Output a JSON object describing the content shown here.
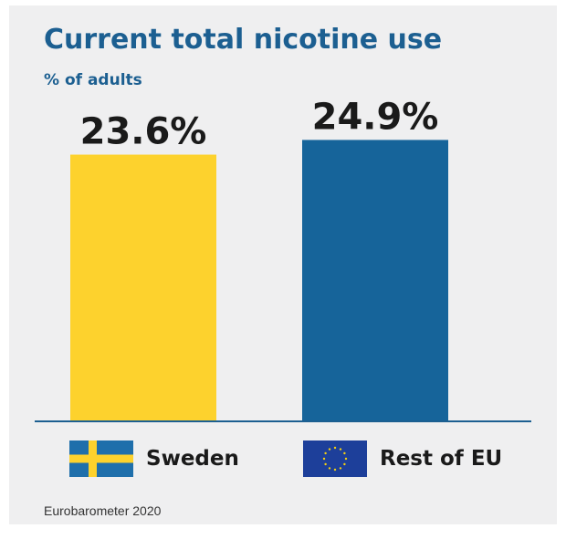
{
  "chart_data": {
    "type": "bar",
    "title": "Current total nicotine use",
    "ylabel": "% of adults",
    "categories": [
      "Sweden",
      "Rest of EU"
    ],
    "values": [
      23.6,
      24.9
    ],
    "value_labels": [
      "23.6%",
      "24.9%"
    ],
    "ylim": [
      0,
      25.5
    ],
    "grid": false,
    "colors": [
      "#fdd22d",
      "#16649a"
    ],
    "legend": {
      "placement": "bottom",
      "entries": [
        {
          "label": "Sweden",
          "icon": "sweden-flag-icon"
        },
        {
          "label": "Rest of EU",
          "icon": "eu-flag-icon"
        }
      ]
    },
    "source": "Eurobarometer 2020"
  }
}
